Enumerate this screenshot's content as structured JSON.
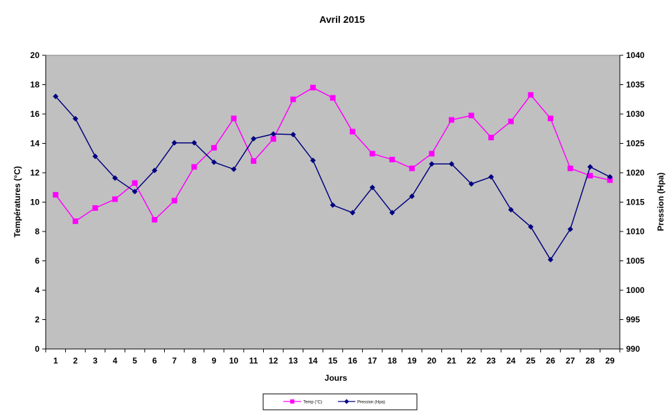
{
  "chart_data": {
    "type": "line",
    "title": "Avril 2015",
    "xlabel": "Jours",
    "ylabel_left": "Températures (°C)",
    "ylabel_right": "Pression (Hpa)",
    "x": [
      1,
      2,
      3,
      4,
      5,
      6,
      7,
      8,
      9,
      10,
      11,
      12,
      13,
      14,
      15,
      16,
      17,
      18,
      19,
      20,
      21,
      22,
      23,
      24,
      25,
      26,
      27,
      28,
      29
    ],
    "ylim_left": [
      0,
      20
    ],
    "yticks_left": [
      0,
      2,
      4,
      6,
      8,
      10,
      12,
      14,
      16,
      18,
      20
    ],
    "ylim_right": [
      990,
      1040
    ],
    "yticks_right": [
      990,
      995,
      1000,
      1005,
      1010,
      1015,
      1020,
      1025,
      1030,
      1035,
      1040
    ],
    "plot_background": "#c0c0c0",
    "grid": false,
    "legend_position": "bottom",
    "series": [
      {
        "name": "Temp (°C)",
        "axis": "left",
        "color": "#ff00ff",
        "marker": "square",
        "values": [
          10.5,
          8.7,
          9.6,
          10.2,
          11.3,
          8.8,
          10.1,
          12.4,
          13.7,
          15.7,
          12.8,
          14.3,
          17.0,
          17.8,
          17.1,
          14.8,
          13.3,
          12.9,
          12.3,
          13.3,
          15.6,
          15.9,
          14.4,
          15.5,
          17.3,
          15.7,
          12.3,
          11.8,
          11.5
        ]
      },
      {
        "name": "Pression (Hpa)",
        "axis": "right",
        "color": "#000080",
        "marker": "diamond",
        "values": [
          1033,
          1029.2,
          1022.8,
          1019.1,
          1016.8,
          1020.4,
          1025.1,
          1025.1,
          1021.8,
          1020.6,
          1025.8,
          1026.6,
          1026.5,
          1022.1,
          1014.5,
          1013.2,
          1017.5,
          1013.2,
          1016,
          1021.5,
          1021.5,
          1018.1,
          1019.3,
          1013.7,
          1010.8,
          1005.2,
          1010.4,
          1021,
          1019.3
        ]
      }
    ]
  }
}
